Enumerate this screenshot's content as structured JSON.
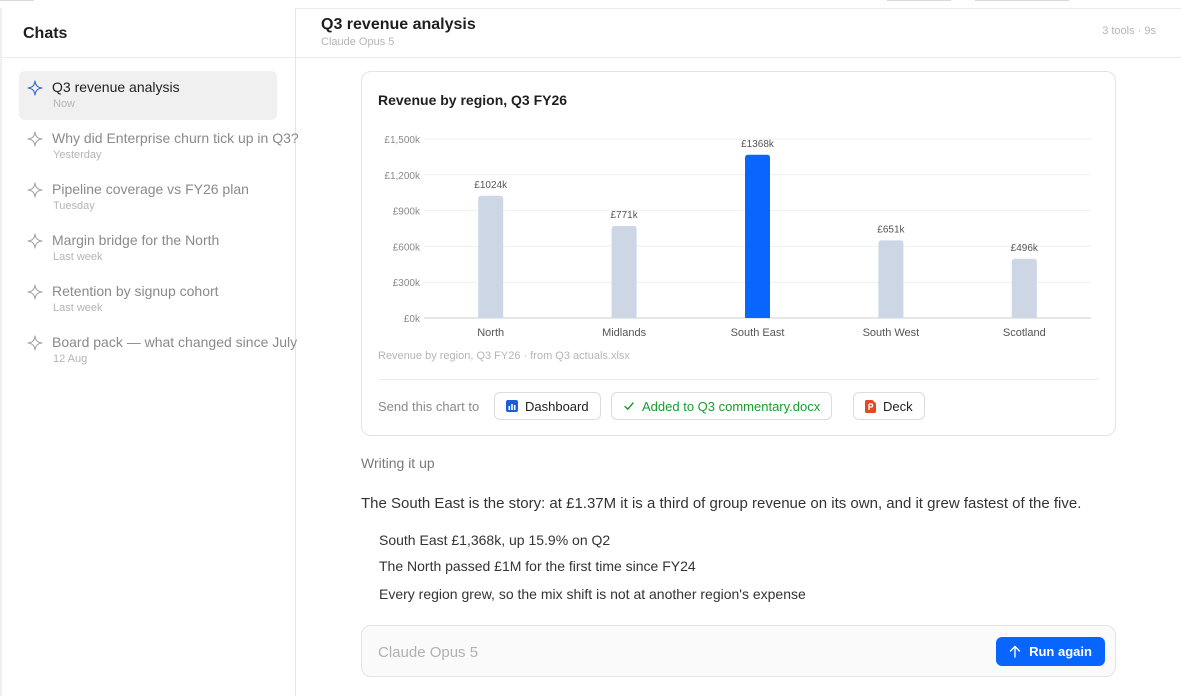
{
  "sidebar": {
    "title": "Chats",
    "items": [
      {
        "title": "Q3 revenue analysis",
        "when": "Now",
        "active": true
      },
      {
        "title": "Why did Enterprise churn tick up in Q3?",
        "when": "Yesterday",
        "active": false
      },
      {
        "title": "Pipeline coverage vs FY26 plan",
        "when": "Tuesday",
        "active": false
      },
      {
        "title": "Margin bridge for the North",
        "when": "Last week",
        "active": false
      },
      {
        "title": "Retention by signup cohort",
        "when": "Last week",
        "active": false
      },
      {
        "title": "Board pack — what changed since July",
        "when": "12 Aug",
        "active": false
      }
    ]
  },
  "header": {
    "title": "Q3 revenue analysis",
    "model": "Claude Opus 5",
    "meta": "3 tools · 9s"
  },
  "chart_data": {
    "type": "bar",
    "title": "Revenue by region, Q3 FY26",
    "categories": [
      "North",
      "Midlands",
      "South East",
      "South West",
      "Scotland"
    ],
    "values": [
      1024,
      771,
      1368,
      651,
      496
    ],
    "data_labels": [
      "£1024k",
      "£771k",
      "£1368k",
      "£651k",
      "£496k"
    ],
    "highlight_index": 2,
    "ylim": [
      0,
      1500
    ],
    "yticks": [
      0,
      300,
      600,
      900,
      1200,
      1500
    ],
    "ytick_labels": [
      "£0k",
      "£300k",
      "£600k",
      "£900k",
      "£1,200k",
      "£1,500k"
    ],
    "grid": true,
    "colors": {
      "bar": "#cdd6e4",
      "highlight": "#0866ff",
      "grid": "#efefef",
      "axis": "#cfcfcf"
    }
  },
  "chart_card": {
    "caption": "Revenue by region, Q3 FY26 · from Q3 actuals.xlsx",
    "send_label": "Send this chart to",
    "chips": {
      "dashboard": "Dashboard",
      "docx": "Added to Q3 commentary.docx",
      "deck": "Deck"
    }
  },
  "message": {
    "status": "Writing it up",
    "summary": "The South East is the story: at £1.37M it is a third of group revenue on its own, and it grew fastest of the five.",
    "bullets": [
      "South East £1,368k, up 15.9% on Q2",
      "The North passed £1M for the first time since FY24",
      "Every region grew, so the mix shift is not at another region's expense"
    ]
  },
  "composer": {
    "placeholder": "Claude Opus 5",
    "run_label": "Run again"
  },
  "colors": {
    "accent": "#0866ff",
    "success": "#1a9c2c",
    "muted": "#b5b5b5"
  },
  "icons": {
    "chat_item": "sparkle-icon",
    "dashboard": "bar-chart-icon",
    "docx": "check-icon",
    "deck": "presentation-icon",
    "run": "arrow-up-icon"
  }
}
